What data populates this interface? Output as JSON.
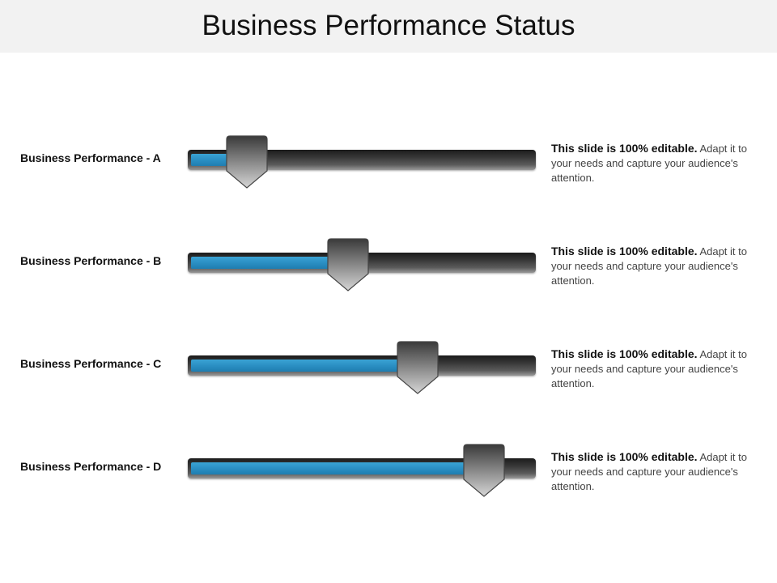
{
  "title": "Business Performance Status",
  "rows": [
    {
      "label": "Business Performance - A",
      "level_percent": 17,
      "desc_lead": "This slide is 100% editable.",
      "desc_rest": "Adapt it to your needs and capture your audience's attention."
    },
    {
      "label": "Business Performance - B",
      "level_percent": 46,
      "desc_lead": "This slide is 100% editable.",
      "desc_rest": "Adapt it to your needs and capture your audience's attention."
    },
    {
      "label": "Business Performance - C",
      "level_percent": 66,
      "desc_lead": "This slide is 100% editable.",
      "desc_rest": "Adapt it to your needs and capture your audience's attention."
    },
    {
      "label": "Business Performance - D",
      "level_percent": 85,
      "desc_lead": "This slide is 100% editable.",
      "desc_rest": "Adapt it to your needs and capture your audience's attention."
    }
  ],
  "colors": {
    "fill": "#2b8fc3",
    "track": "#2a2a2a",
    "thumb_top": "#3a3a3a",
    "thumb_bottom": "#d6d6d6"
  }
}
